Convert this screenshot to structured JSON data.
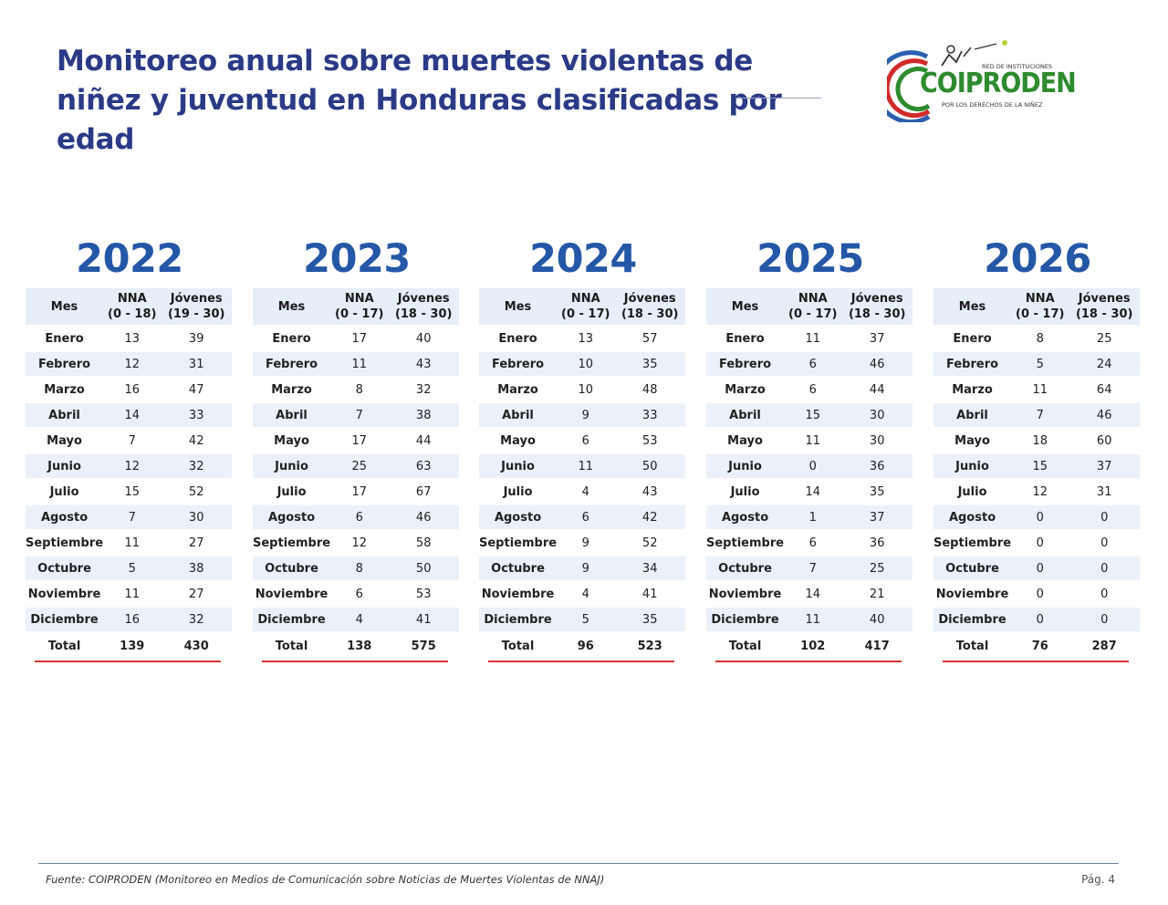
{
  "title": "Monitoreo anual sobre muertes violentas de niñez y juventud en Honduras clasificadas por edad",
  "logo": {
    "top_text": "RED DE INSTITUCIONES",
    "name": "COIPRODEN",
    "subtitle": "POR LOS DERECHOS DE LA NIÑEZ"
  },
  "labels": {
    "mes": "Mes",
    "nna": "NNA",
    "jovenes": "Jóvenes",
    "total": "Total"
  },
  "years": [
    {
      "year": "2022",
      "nna_range": "(0 - 18)",
      "jov_range": "(19 - 30)",
      "rows": [
        [
          "Enero",
          "13",
          "39"
        ],
        [
          "Febrero",
          "12",
          "31"
        ],
        [
          "Marzo",
          "16",
          "47"
        ],
        [
          "Abril",
          "14",
          "33"
        ],
        [
          "Mayo",
          "7",
          "42"
        ],
        [
          "Junio",
          "12",
          "32"
        ],
        [
          "Julio",
          "15",
          "52"
        ],
        [
          "Agosto",
          "7",
          "30"
        ],
        [
          "Septiembre",
          "11",
          "27"
        ],
        [
          "Octubre",
          "5",
          "38"
        ],
        [
          "Noviembre",
          "11",
          "27"
        ],
        [
          "Diciembre",
          "16",
          "32"
        ]
      ],
      "total_nna": "139",
      "total_jov": "430"
    },
    {
      "year": "2023",
      "nna_range": "(0 - 17)",
      "jov_range": "(18 - 30)",
      "rows": [
        [
          "Enero",
          "17",
          "40"
        ],
        [
          "Febrero",
          "11",
          "43"
        ],
        [
          "Marzo",
          "8",
          "32"
        ],
        [
          "Abril",
          "7",
          "38"
        ],
        [
          "Mayo",
          "17",
          "44"
        ],
        [
          "Junio",
          "25",
          "63"
        ],
        [
          "Julio",
          "17",
          "67"
        ],
        [
          "Agosto",
          "6",
          "46"
        ],
        [
          "Septiembre",
          "12",
          "58"
        ],
        [
          "Octubre",
          "8",
          "50"
        ],
        [
          "Noviembre",
          "6",
          "53"
        ],
        [
          "Diciembre",
          "4",
          "41"
        ]
      ],
      "total_nna": "138",
      "total_jov": "575"
    },
    {
      "year": "2024",
      "nna_range": "(0 - 17)",
      "jov_range": "(18 - 30)",
      "rows": [
        [
          "Enero",
          "13",
          "57"
        ],
        [
          "Febrero",
          "10",
          "35"
        ],
        [
          "Marzo",
          "10",
          "48"
        ],
        [
          "Abril",
          "9",
          "33"
        ],
        [
          "Mayo",
          "6",
          "53"
        ],
        [
          "Junio",
          "11",
          "50"
        ],
        [
          "Julio",
          "4",
          "43"
        ],
        [
          "Agosto",
          "6",
          "42"
        ],
        [
          "Septiembre",
          "9",
          "52"
        ],
        [
          "Octubre",
          "9",
          "34"
        ],
        [
          "Noviembre",
          "4",
          "41"
        ],
        [
          "Diciembre",
          "5",
          "35"
        ]
      ],
      "total_nna": "96",
      "total_jov": "523"
    },
    {
      "year": "2025",
      "nna_range": "(0 - 17)",
      "jov_range": "(18 - 30)",
      "rows": [
        [
          "Enero",
          "11",
          "37"
        ],
        [
          "Febrero",
          "6",
          "46"
        ],
        [
          "Marzo",
          "6",
          "44"
        ],
        [
          "Abril",
          "15",
          "30"
        ],
        [
          "Mayo",
          "11",
          "30"
        ],
        [
          "Junio",
          "0",
          "36"
        ],
        [
          "Julio",
          "14",
          "35"
        ],
        [
          "Agosto",
          "1",
          "37"
        ],
        [
          "Septiembre",
          "6",
          "36"
        ],
        [
          "Octubre",
          "7",
          "25"
        ],
        [
          "Noviembre",
          "14",
          "21"
        ],
        [
          "Diciembre",
          "11",
          "40"
        ]
      ],
      "total_nna": "102",
      "total_jov": "417"
    },
    {
      "year": "2026",
      "nna_range": "(0 - 17)",
      "jov_range": "(18 - 30)",
      "rows": [
        [
          "Enero",
          "8",
          "25"
        ],
        [
          "Febrero",
          "5",
          "24"
        ],
        [
          "Marzo",
          "11",
          "64"
        ],
        [
          "Abril",
          "7",
          "46"
        ],
        [
          "Mayo",
          "18",
          "60"
        ],
        [
          "Junio",
          "15",
          "37"
        ],
        [
          "Julio",
          "12",
          "31"
        ],
        [
          "Agosto",
          "0",
          "0"
        ],
        [
          "Septiembre",
          "0",
          "0"
        ],
        [
          "Octubre",
          "0",
          "0"
        ],
        [
          "Noviembre",
          "0",
          "0"
        ],
        [
          "Diciembre",
          "0",
          "0"
        ]
      ],
      "total_nna": "76",
      "total_jov": "287"
    }
  ],
  "footer": {
    "source": "Fuente: COIPRODEN (Monitoreo en Medios de Comunicación sobre Noticias de Muertes Violentas de NNAJ)",
    "page": "Pág. 4"
  },
  "colors": {
    "title": "#2b3a86",
    "year": "#2557a7",
    "header_bg": "#e6eef8",
    "total_rule": "#d9342b"
  }
}
